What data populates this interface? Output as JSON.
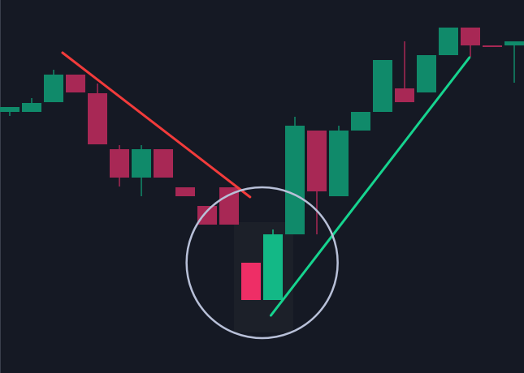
{
  "chart_data": {
    "type": "candlestick",
    "title": "",
    "xlabel": "",
    "ylabel": "",
    "grid": false,
    "ylim": [
      0,
      460
    ],
    "colors": {
      "background": "#151924",
      "up": "#108a6a",
      "down": "#a82855",
      "up_highlight": "#13b886",
      "down_highlight": "#ee2e66",
      "downtrend_line": "#f23b3b",
      "uptrend_line": "#16d48f",
      "circle": "#b8c0d8",
      "highlight_box": "#1c2029"
    },
    "candles": [
      {
        "o": 322,
        "h": 328,
        "l": 317,
        "c": 328
      },
      {
        "o": 322,
        "h": 339,
        "l": 322,
        "c": 333
      },
      {
        "o": 334,
        "h": 374,
        "l": 334,
        "c": 368
      },
      {
        "o": 368,
        "h": 368,
        "l": 346,
        "c": 346
      },
      {
        "o": 345,
        "h": 357,
        "l": 282,
        "c": 282
      },
      {
        "o": 276,
        "h": 281,
        "l": 230,
        "c": 241
      },
      {
        "o": 241,
        "h": 281,
        "l": 218,
        "c": 276
      },
      {
        "o": 276,
        "h": 276,
        "l": 241,
        "c": 241
      },
      {
        "o": 229,
        "h": 229,
        "l": 218,
        "c": 218
      },
      {
        "o": 206,
        "h": 206,
        "l": 183,
        "c": 183
      },
      {
        "o": 229,
        "h": 229,
        "l": 183,
        "c": 183
      },
      {
        "o": 136,
        "h": 136,
        "l": 90,
        "c": 90,
        "highlight": true
      },
      {
        "o": 90,
        "h": 177,
        "l": 90,
        "c": 171,
        "highlight": true
      },
      {
        "o": 171,
        "h": 316,
        "l": 171,
        "c": 305
      },
      {
        "o": 299,
        "h": 299,
        "l": 171,
        "c": 224
      },
      {
        "o": 218,
        "h": 305,
        "l": 218,
        "c": 299
      },
      {
        "o": 299,
        "h": 322,
        "l": 299,
        "c": 322
      },
      {
        "o": 322,
        "h": 386,
        "l": 322,
        "c": 386
      },
      {
        "o": 351,
        "h": 409,
        "l": 334,
        "c": 334
      },
      {
        "o": 346,
        "h": 392,
        "l": 346,
        "c": 392
      },
      {
        "o": 392,
        "h": 426,
        "l": 392,
        "c": 426
      },
      {
        "o": 426,
        "h": 426,
        "l": 390,
        "c": 404
      },
      {
        "o": 404,
        "h": 404,
        "l": 402,
        "c": 402
      },
      {
        "o": 404,
        "h": 409,
        "l": 358,
        "c": 409
      }
    ],
    "trendlines": [
      {
        "kind": "downtrend",
        "from": {
          "index": 2.85,
          "price": 395
        },
        "to": {
          "index": 11.4,
          "price": 217
        }
      },
      {
        "kind": "uptrend",
        "from": {
          "index": 12.35,
          "price": 71
        },
        "to": {
          "index": 21.4,
          "price": 389
        }
      }
    ],
    "annotation": {
      "kind": "circle",
      "center_index": 11.95,
      "center_price": 136,
      "radius_price": 93
    }
  }
}
